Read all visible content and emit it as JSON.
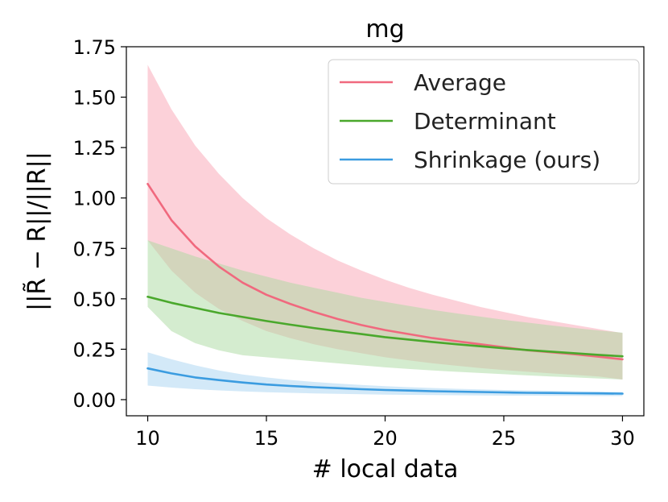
{
  "chart_data": {
    "type": "line",
    "title": "mg",
    "xlabel": "# local data",
    "ylabel": "||R̃ − R||/||R||",
    "xlim": [
      9.1,
      30.9
    ],
    "ylim": [
      -0.08,
      1.75
    ],
    "xticks": [
      10,
      15,
      20,
      25,
      30
    ],
    "xtick_labels": [
      "10",
      "15",
      "20",
      "25",
      "30"
    ],
    "yticks": [
      0.0,
      0.25,
      0.5,
      0.75,
      1.0,
      1.25,
      1.5,
      1.75
    ],
    "ytick_labels": [
      "0.00",
      "0.25",
      "0.50",
      "0.75",
      "1.00",
      "1.25",
      "1.50",
      "1.75"
    ],
    "legend_position": "top-right",
    "x": [
      10,
      11,
      12,
      13,
      14,
      15,
      16,
      17,
      18,
      19,
      20,
      21,
      22,
      23,
      24,
      25,
      26,
      27,
      28,
      29,
      30
    ],
    "series": [
      {
        "name": "Average",
        "color": "#f0697e",
        "band_color": "#f9a3b4",
        "values": [
          1.07,
          0.89,
          0.76,
          0.66,
          0.58,
          0.52,
          0.475,
          0.435,
          0.4,
          0.37,
          0.345,
          0.325,
          0.305,
          0.29,
          0.275,
          0.26,
          0.245,
          0.235,
          0.225,
          0.213,
          0.2
        ],
        "upper": [
          1.66,
          1.44,
          1.26,
          1.12,
          1.0,
          0.9,
          0.82,
          0.75,
          0.69,
          0.64,
          0.595,
          0.555,
          0.52,
          0.49,
          0.46,
          0.435,
          0.41,
          0.39,
          0.37,
          0.35,
          0.33
        ],
        "lower": [
          0.79,
          0.64,
          0.53,
          0.45,
          0.39,
          0.34,
          0.305,
          0.275,
          0.25,
          0.23,
          0.21,
          0.195,
          0.18,
          0.168,
          0.157,
          0.147,
          0.138,
          0.13,
          0.123,
          0.115,
          0.1
        ]
      },
      {
        "name": "Determinant",
        "color": "#4aa82c",
        "band_color": "#a9d9a0",
        "values": [
          0.51,
          0.48,
          0.455,
          0.43,
          0.41,
          0.39,
          0.372,
          0.355,
          0.34,
          0.325,
          0.31,
          0.298,
          0.286,
          0.275,
          0.265,
          0.255,
          0.246,
          0.238,
          0.23,
          0.222,
          0.215
        ],
        "upper": [
          0.79,
          0.75,
          0.71,
          0.675,
          0.64,
          0.61,
          0.58,
          0.555,
          0.53,
          0.505,
          0.485,
          0.465,
          0.445,
          0.428,
          0.412,
          0.396,
          0.382,
          0.368,
          0.355,
          0.343,
          0.332
        ],
        "lower": [
          0.46,
          0.34,
          0.28,
          0.245,
          0.22,
          0.21,
          0.2,
          0.19,
          0.18,
          0.17,
          0.16,
          0.152,
          0.145,
          0.138,
          0.132,
          0.126,
          0.12,
          0.115,
          0.11,
          0.105,
          0.1
        ]
      },
      {
        "name": "Shrinkage (ours)",
        "color": "#3b9ce0",
        "band_color": "#a8d4f2",
        "values": [
          0.155,
          0.13,
          0.11,
          0.097,
          0.085,
          0.075,
          0.068,
          0.062,
          0.057,
          0.052,
          0.048,
          0.045,
          0.042,
          0.04,
          0.038,
          0.036,
          0.034,
          0.033,
          0.032,
          0.031,
          0.03
        ],
        "upper": [
          0.235,
          0.2,
          0.17,
          0.145,
          0.125,
          0.11,
          0.098,
          0.088,
          0.08,
          0.073,
          0.067,
          0.062,
          0.058,
          0.054,
          0.051,
          0.048,
          0.046,
          0.044,
          0.042,
          0.04,
          0.038
        ],
        "lower": [
          0.07,
          0.06,
          0.052,
          0.046,
          0.041,
          0.037,
          0.034,
          0.031,
          0.029,
          0.027,
          0.025,
          0.024,
          0.023,
          0.022,
          0.021,
          0.02,
          0.02,
          0.019,
          0.019,
          0.018,
          0.018
        ]
      }
    ]
  }
}
